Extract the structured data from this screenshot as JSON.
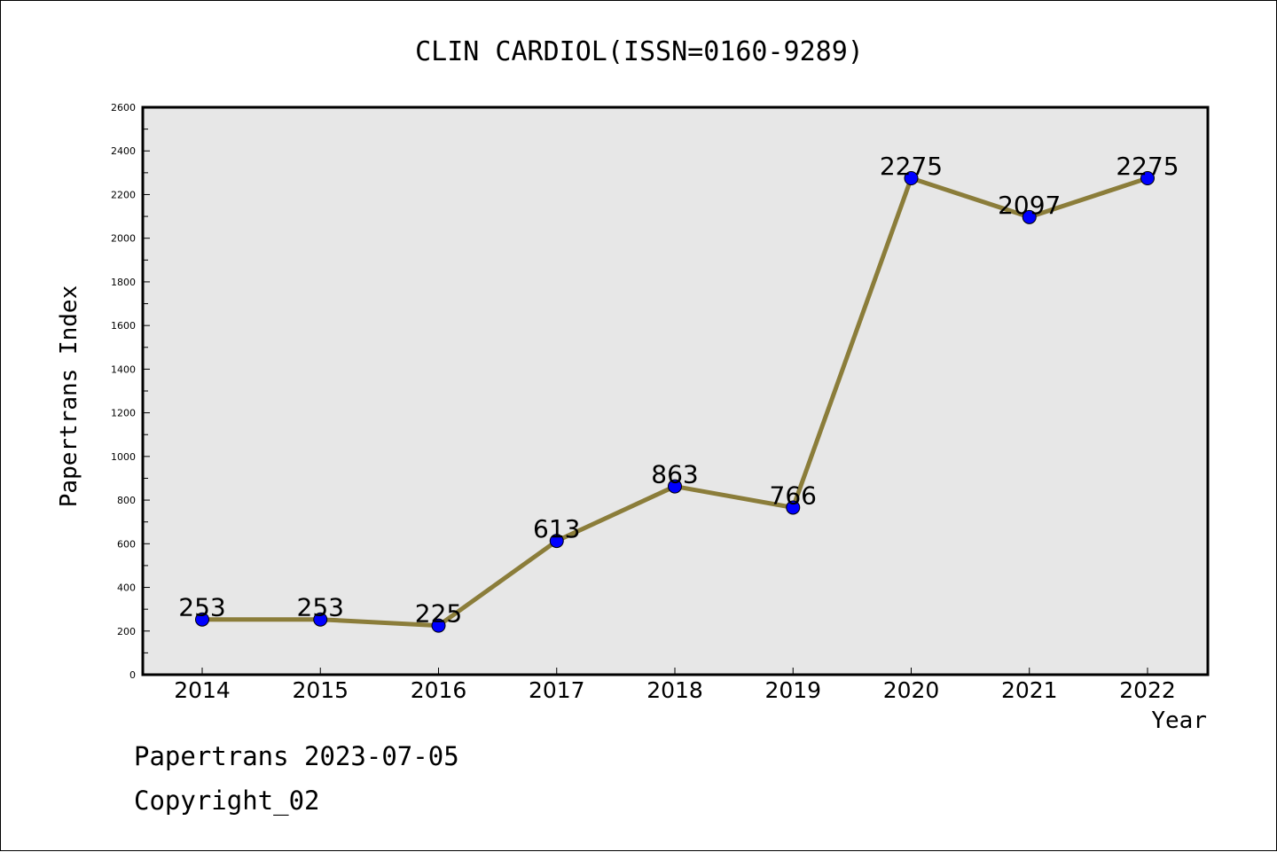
{
  "chart_data": {
    "type": "line",
    "title": "CLIN CARDIOL(ISSN=0160-9289)",
    "xlabel": "Year",
    "ylabel": "Papertrans Index",
    "categories": [
      "2014",
      "2015",
      "2016",
      "2017",
      "2018",
      "2019",
      "2020",
      "2021",
      "2022"
    ],
    "series": [
      {
        "values": [
          253,
          253,
          225,
          613,
          863,
          766,
          2275,
          2097,
          2275
        ]
      }
    ],
    "data_labels": [
      "253",
      "253",
      "225",
      "613",
      "863",
      "766",
      "2275",
      "2097",
      "2275"
    ],
    "ylim": [
      0,
      2600
    ],
    "yticks": [
      "0",
      "200",
      "400",
      "600",
      "800",
      "1000",
      "1200",
      "1400",
      "1600",
      "1800",
      "2000",
      "2200",
      "2400",
      "2600"
    ],
    "grid": false,
    "legend": "none",
    "colors": {
      "line": "#8b7d3a",
      "marker": "#0000ff",
      "plot_bg": "#e7e7e7"
    }
  },
  "footer": {
    "line1": "Papertrans 2023-07-05",
    "line2": "Copyright_02"
  }
}
